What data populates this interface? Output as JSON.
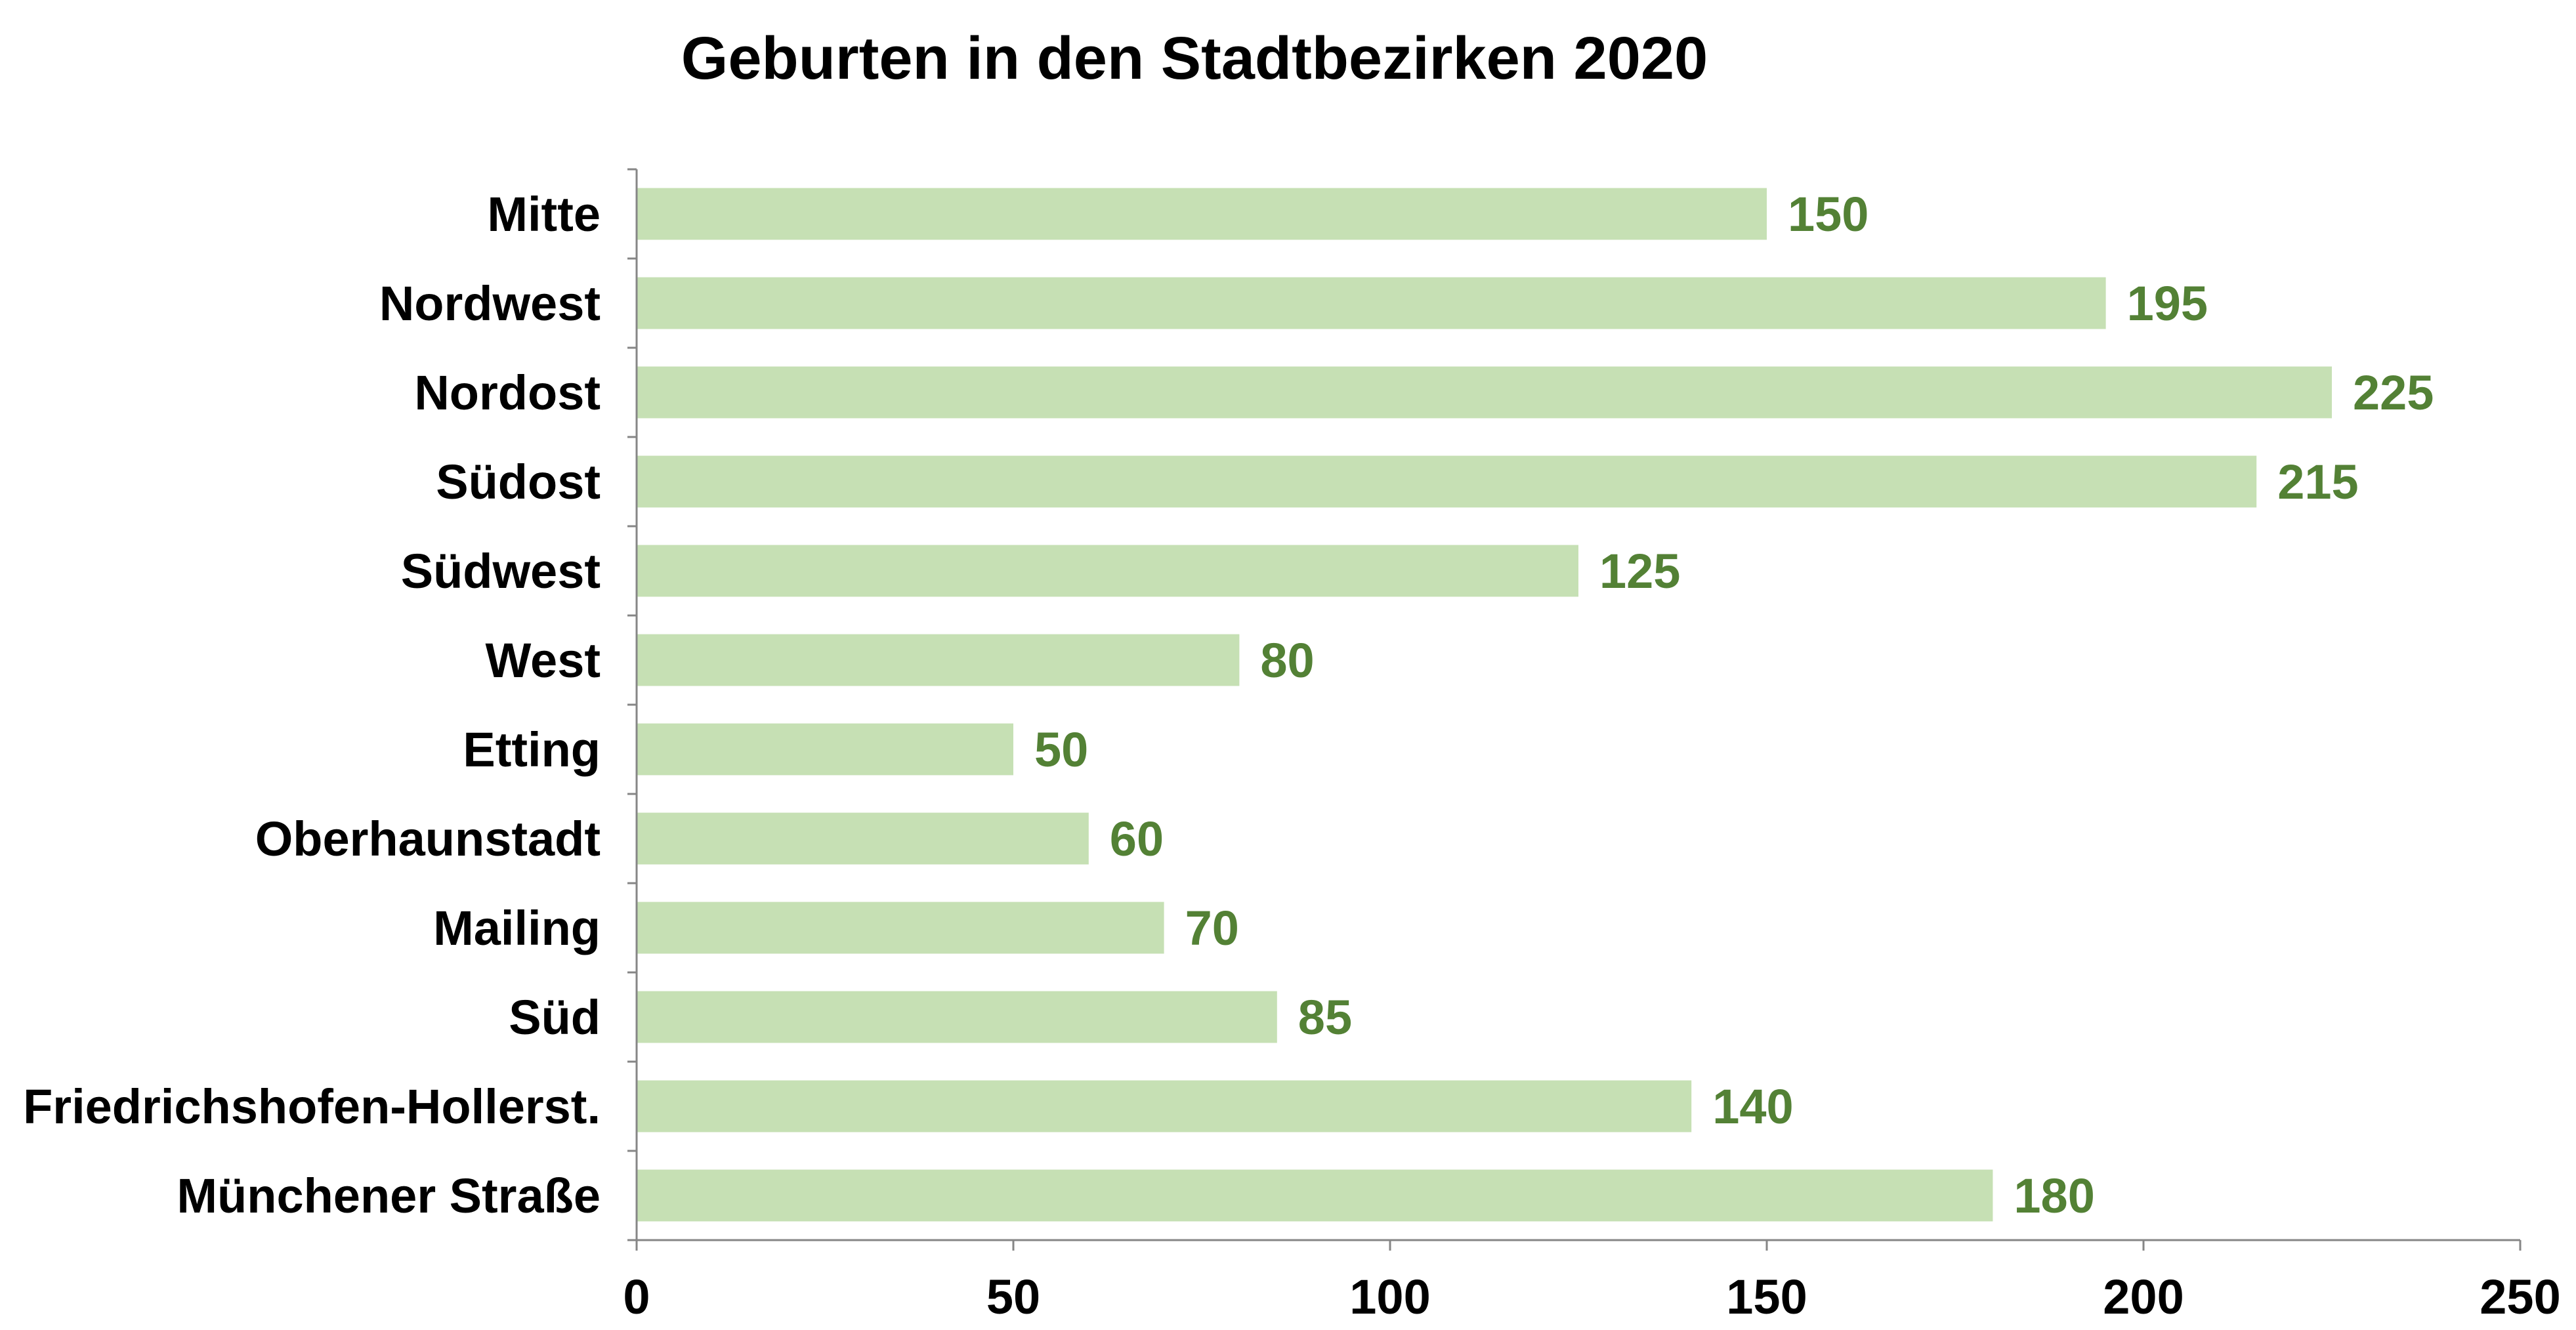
{
  "chart_data": {
    "type": "bar",
    "orientation": "horizontal",
    "title": "Geburten in den Stadtbezirken 2020",
    "xlabel": "",
    "ylabel": "",
    "categories": [
      "Mitte",
      "Nordwest",
      "Nordost",
      "Südost",
      "Südwest",
      "West",
      "Etting",
      "Oberhaunstadt",
      "Mailing",
      "Süd",
      "Friedrichshofen-Hollerst.",
      "Münchener Straße"
    ],
    "values": [
      150,
      195,
      225,
      215,
      125,
      80,
      50,
      60,
      70,
      85,
      140,
      180
    ],
    "xlim": [
      0,
      250
    ],
    "xticks": [
      0,
      50,
      100,
      150,
      200,
      250
    ],
    "grid": false,
    "legend": "none",
    "colors": {
      "bar": "#c6e0b4",
      "value_label": "#538135",
      "text": "#000000",
      "axis": "#868686"
    }
  }
}
